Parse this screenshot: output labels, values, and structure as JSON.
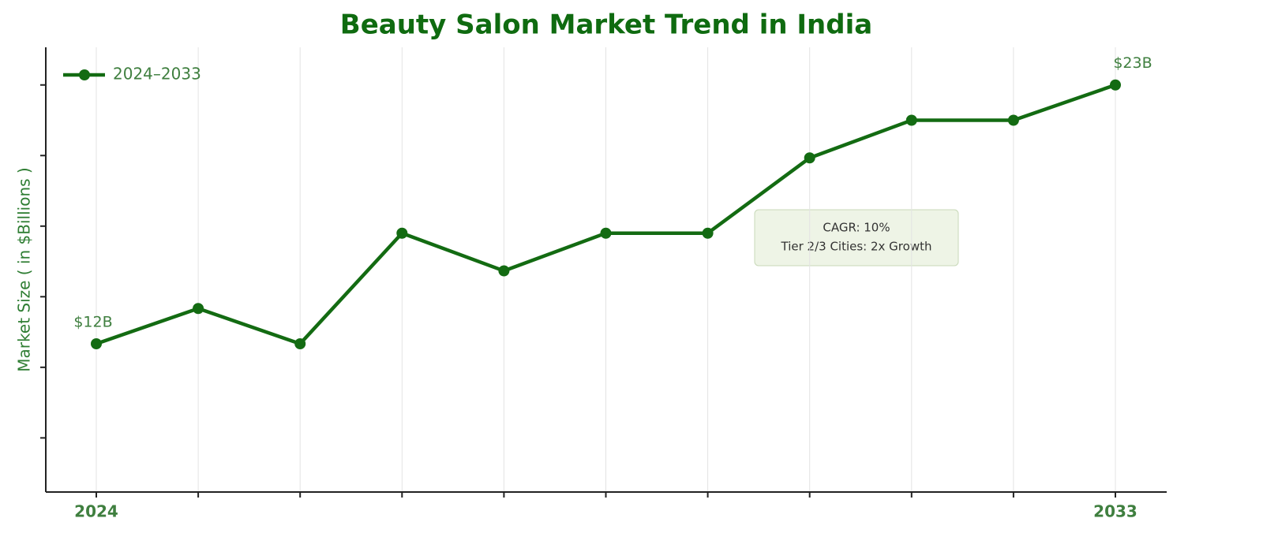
{
  "chart_data": {
    "type": "line",
    "title": "Beauty Salon Market Trend in India",
    "y_label": "Market Size ( in $Billions )",
    "categories": [
      "2024",
      null,
      null,
      null,
      null,
      null,
      null,
      null,
      null,
      null,
      "2033"
    ],
    "series": [
      {
        "name": "2024–2033",
        "color": "#136b12",
        "values": [
          12,
          13.5,
          12,
          16.7,
          15.1,
          16.7,
          16.7,
          19.9,
          21.5,
          21.5,
          23
        ],
        "value_labels": [
          "$12B",
          null,
          null,
          null,
          null,
          null,
          null,
          null,
          null,
          null,
          "$23B"
        ]
      }
    ],
    "ylim": [
      5.7,
      24.6
    ],
    "yticks": [
      8,
      11,
      14,
      17,
      20,
      23
    ],
    "grid": true,
    "legend": "upper left",
    "annotation": [
      "CAGR: 10%",
      "Tier 2/3 Cities: 2x Growth"
    ]
  }
}
